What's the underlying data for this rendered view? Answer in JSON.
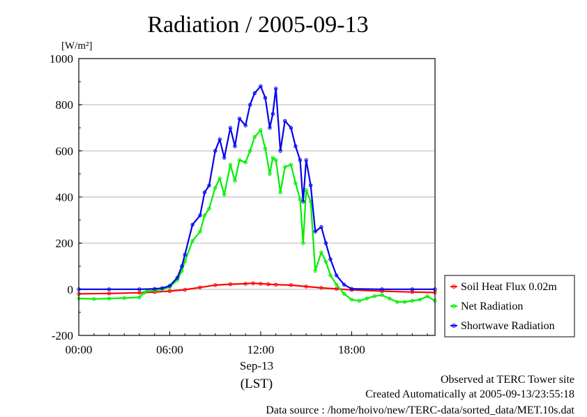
{
  "chart_data": {
    "type": "line",
    "title": "Radiation / 2005-09-13",
    "ylabel": "[W/m²]",
    "ylim": [
      -200,
      1000
    ],
    "yticks": [
      "1000",
      "800",
      "600",
      "400",
      "200",
      "0",
      "-200"
    ],
    "xlim": [
      0,
      23.5
    ],
    "xticks": [
      "00:00",
      "06:00",
      "12:00",
      "18:00"
    ],
    "xlabel_date": "Sep-13",
    "xlabel_unit": "(LST)",
    "grid": true,
    "legend_position": "right",
    "series": [
      {
        "name": "Soil Heat Flux 0.02m",
        "color": "#ff0000",
        "x": [
          0,
          2,
          4,
          5,
          6,
          7,
          8,
          9,
          10,
          11,
          11.5,
          12,
          12.5,
          13,
          14,
          15,
          16,
          17,
          18,
          20,
          22,
          23.5
        ],
        "y": [
          -20,
          -18,
          -15,
          -12,
          -8,
          -2,
          8,
          18,
          22,
          24,
          26,
          24,
          22,
          20,
          18,
          12,
          6,
          2,
          -3,
          -8,
          -12,
          -14
        ]
      },
      {
        "name": "Net Radiation",
        "color": "#00ee00",
        "x": [
          0,
          1,
          2,
          3,
          4,
          4.3,
          4.5,
          5,
          5.5,
          6,
          6.5,
          6.8,
          7,
          7.5,
          8,
          8.3,
          8.6,
          9,
          9.3,
          9.6,
          10,
          10.3,
          10.6,
          11,
          11.3,
          11.6,
          12,
          12.3,
          12.6,
          12.8,
          13,
          13.3,
          13.6,
          14,
          14.3,
          14.6,
          14.8,
          15,
          15.3,
          15.6,
          16,
          16.3,
          16.6,
          17,
          17.5,
          18,
          18.5,
          19,
          19.5,
          20,
          20.5,
          21,
          21.5,
          22,
          22.5,
          23,
          23.5
        ],
        "y": [
          -40,
          -42,
          -40,
          -38,
          -35,
          -15,
          -5,
          -5,
          0,
          10,
          40,
          80,
          120,
          210,
          250,
          320,
          350,
          440,
          480,
          410,
          540,
          470,
          560,
          550,
          600,
          660,
          690,
          610,
          500,
          570,
          560,
          420,
          530,
          540,
          460,
          390,
          200,
          430,
          380,
          80,
          160,
          120,
          60,
          20,
          -20,
          -45,
          -50,
          -40,
          -30,
          -25,
          -40,
          -55,
          -55,
          -50,
          -45,
          -30,
          -50
        ]
      },
      {
        "name": "Shortwave Radiation",
        "color": "#0000ee",
        "x": [
          0,
          2,
          4,
          5,
          5.5,
          6,
          6.5,
          6.8,
          7,
          7.5,
          8,
          8.3,
          8.6,
          9,
          9.3,
          9.6,
          10,
          10.3,
          10.6,
          11,
          11.3,
          11.6,
          12,
          12.3,
          12.6,
          12.8,
          13,
          13.3,
          13.6,
          14,
          14.3,
          14.6,
          14.8,
          15,
          15.3,
          15.6,
          16,
          16.3,
          16.6,
          17,
          17.5,
          18,
          20,
          22,
          23.5
        ],
        "y": [
          0,
          0,
          0,
          2,
          5,
          15,
          50,
          100,
          150,
          280,
          320,
          420,
          450,
          600,
          650,
          570,
          700,
          620,
          740,
          710,
          800,
          850,
          880,
          830,
          700,
          760,
          870,
          600,
          730,
          700,
          620,
          560,
          380,
          560,
          450,
          250,
          270,
          200,
          130,
          60,
          20,
          2,
          0,
          0,
          0
        ]
      }
    ]
  },
  "footer": {
    "observed": "Observed at TERC Tower site",
    "created": "Created Automatically at 2005-09-13/23:55:18",
    "source": "Data source : /home/hoivo/new/TERC-data/sorted_data/MET.10s.dat"
  }
}
